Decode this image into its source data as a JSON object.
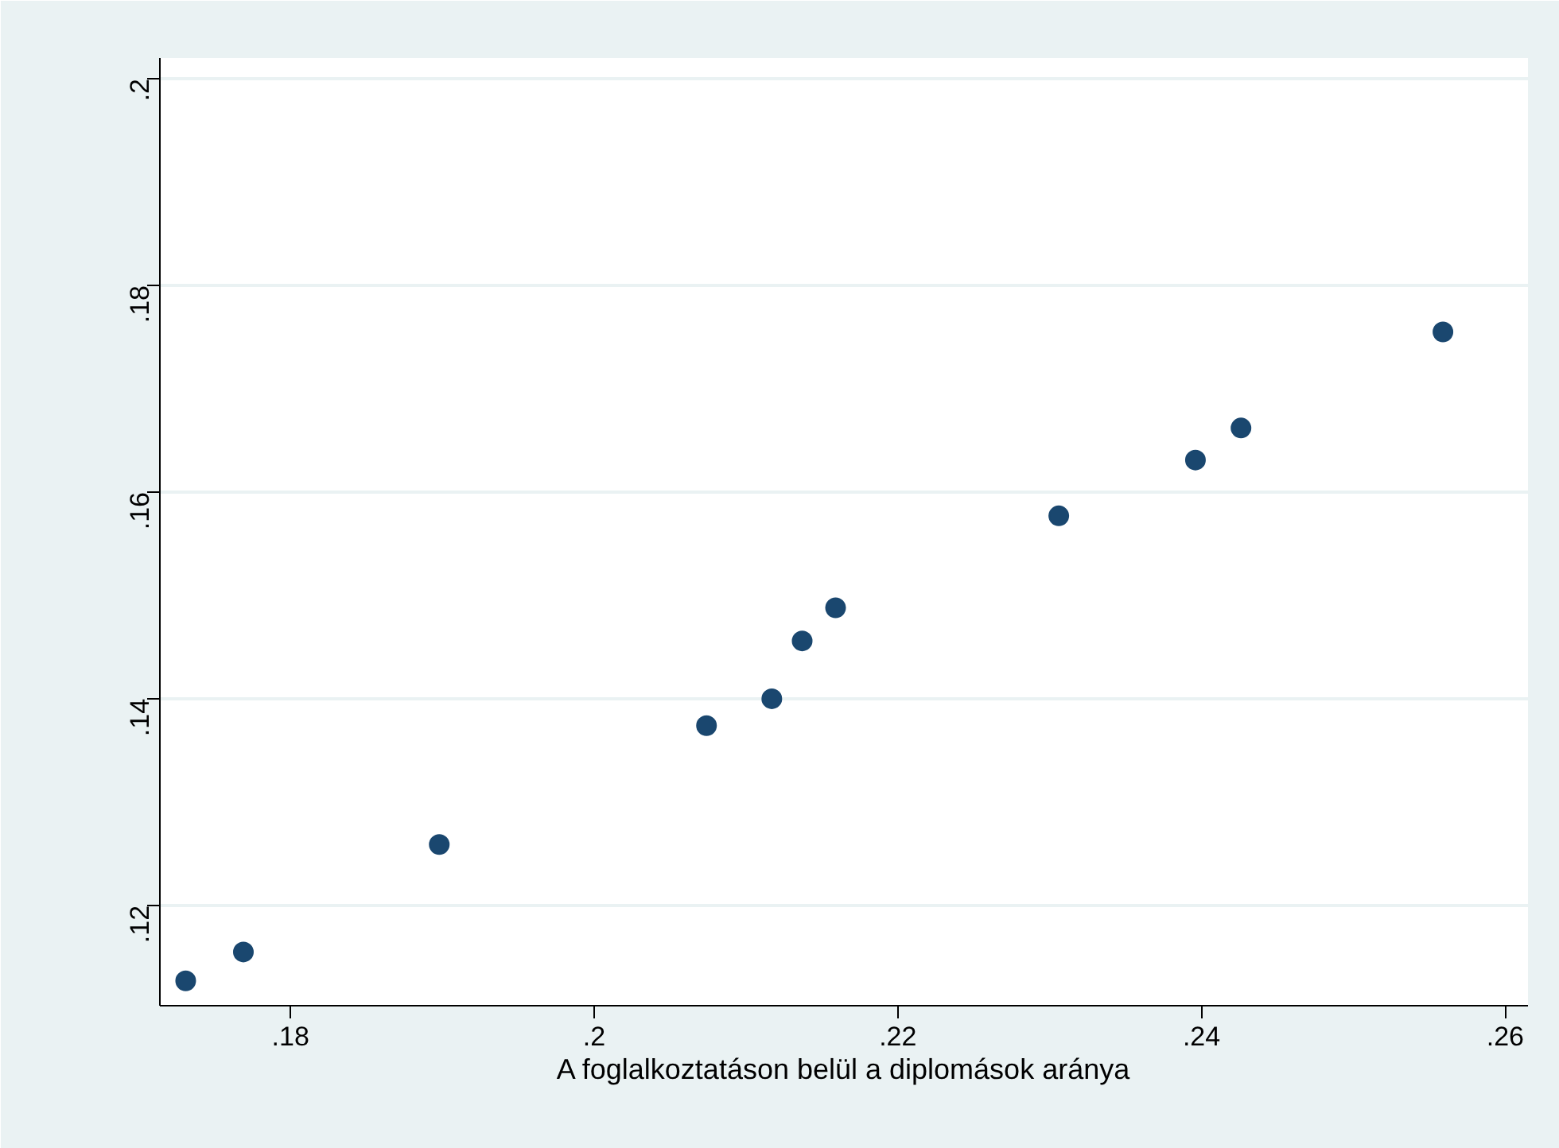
{
  "chart_data": {
    "type": "scatter",
    "xlabel": "A foglalkoztatáson belül a diplomások aránya",
    "x": [
      0.1731,
      0.1769,
      0.1898,
      0.2074,
      0.2117,
      0.2137,
      0.2159,
      0.2306,
      0.2396,
      0.2426,
      0.2559
    ],
    "series": [
      {
        "color": "#1a476f",
        "values": [
          0.1127,
          0.1155,
          0.1259,
          0.1374,
          0.14,
          0.1456,
          0.1488,
          0.1577,
          0.1631,
          0.1662,
          0.1755
        ]
      }
    ],
    "xlim": [
      0.1714,
      0.2615
    ],
    "ylim": [
      0.1103,
      0.202
    ],
    "xticks": [
      {
        "value": 0.18,
        "label": ".18"
      },
      {
        "value": 0.2,
        "label": ".2"
      },
      {
        "value": 0.22,
        "label": ".22"
      },
      {
        "value": 0.24,
        "label": ".24"
      },
      {
        "value": 0.26,
        "label": ".26"
      }
    ],
    "yticks": [
      {
        "value": 0.12,
        "label": ".12"
      },
      {
        "value": 0.14,
        "label": ".14"
      },
      {
        "value": 0.16,
        "label": ".16"
      },
      {
        "value": 0.18,
        "label": ".18"
      },
      {
        "value": 0.2,
        "label": ".2"
      }
    ],
    "grid": "y",
    "marker": "circle"
  }
}
